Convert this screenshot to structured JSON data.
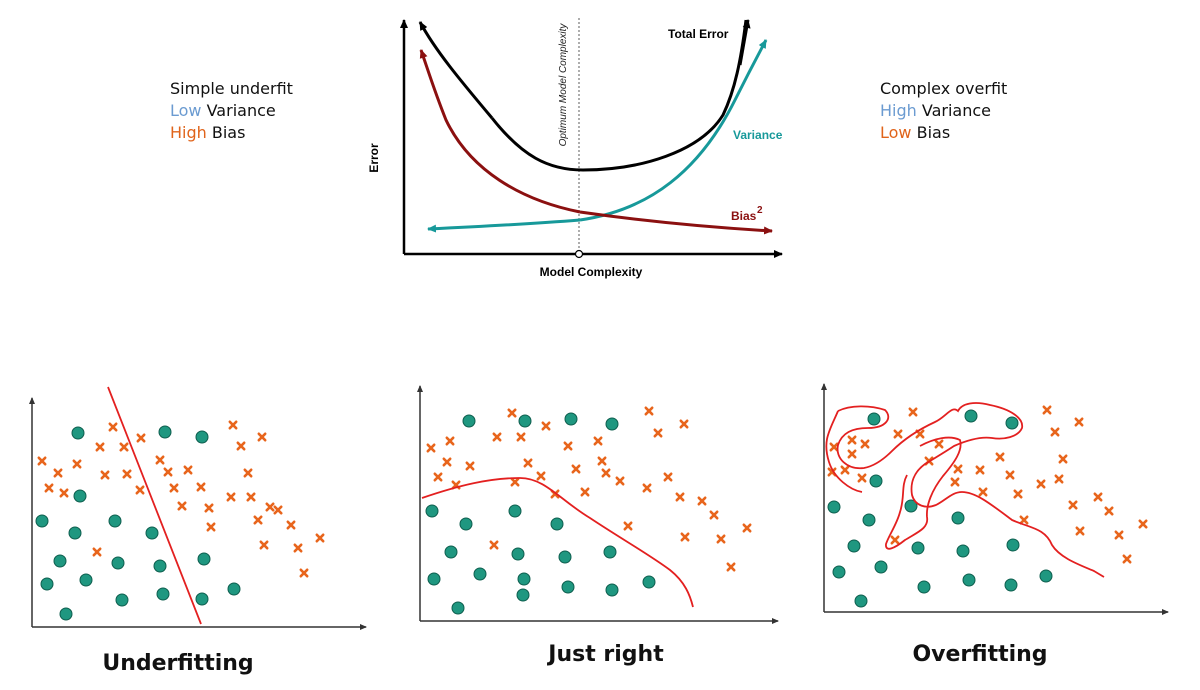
{
  "notes_left": {
    "line1": "Simple underfit",
    "line2_colored": "Low",
    "line2_rest": " Variance",
    "line3_colored": "High",
    "line3_rest": " Bias"
  },
  "notes_right": {
    "line1": "Complex overfit",
    "line2_colored": "High",
    "line2_rest": " Variance",
    "line3_colored": "Low",
    "line3_rest": " Bias"
  },
  "tradeoff_chart": {
    "y_label": "Error",
    "x_label": "Model Complexity",
    "optimum_label": "Optimum Model Complexity",
    "total_error_label": "Total Error",
    "variance_label": "Variance",
    "bias_label": "Bias",
    "bias_superscript": "2"
  },
  "captions": {
    "underfitting": "Underfitting",
    "just_right": "Just right",
    "overfitting": "Overfitting"
  },
  "colors": {
    "total_error": "#000000",
    "variance": "#17999a",
    "bias": "#8b1010",
    "circle_fill": "#1f9780",
    "circle_stroke": "#0e5e4e",
    "cross": "#e8651c",
    "boundary": "#e32020",
    "blue_text": "#6b9bd1",
    "orange_text": "#e0641b"
  }
}
